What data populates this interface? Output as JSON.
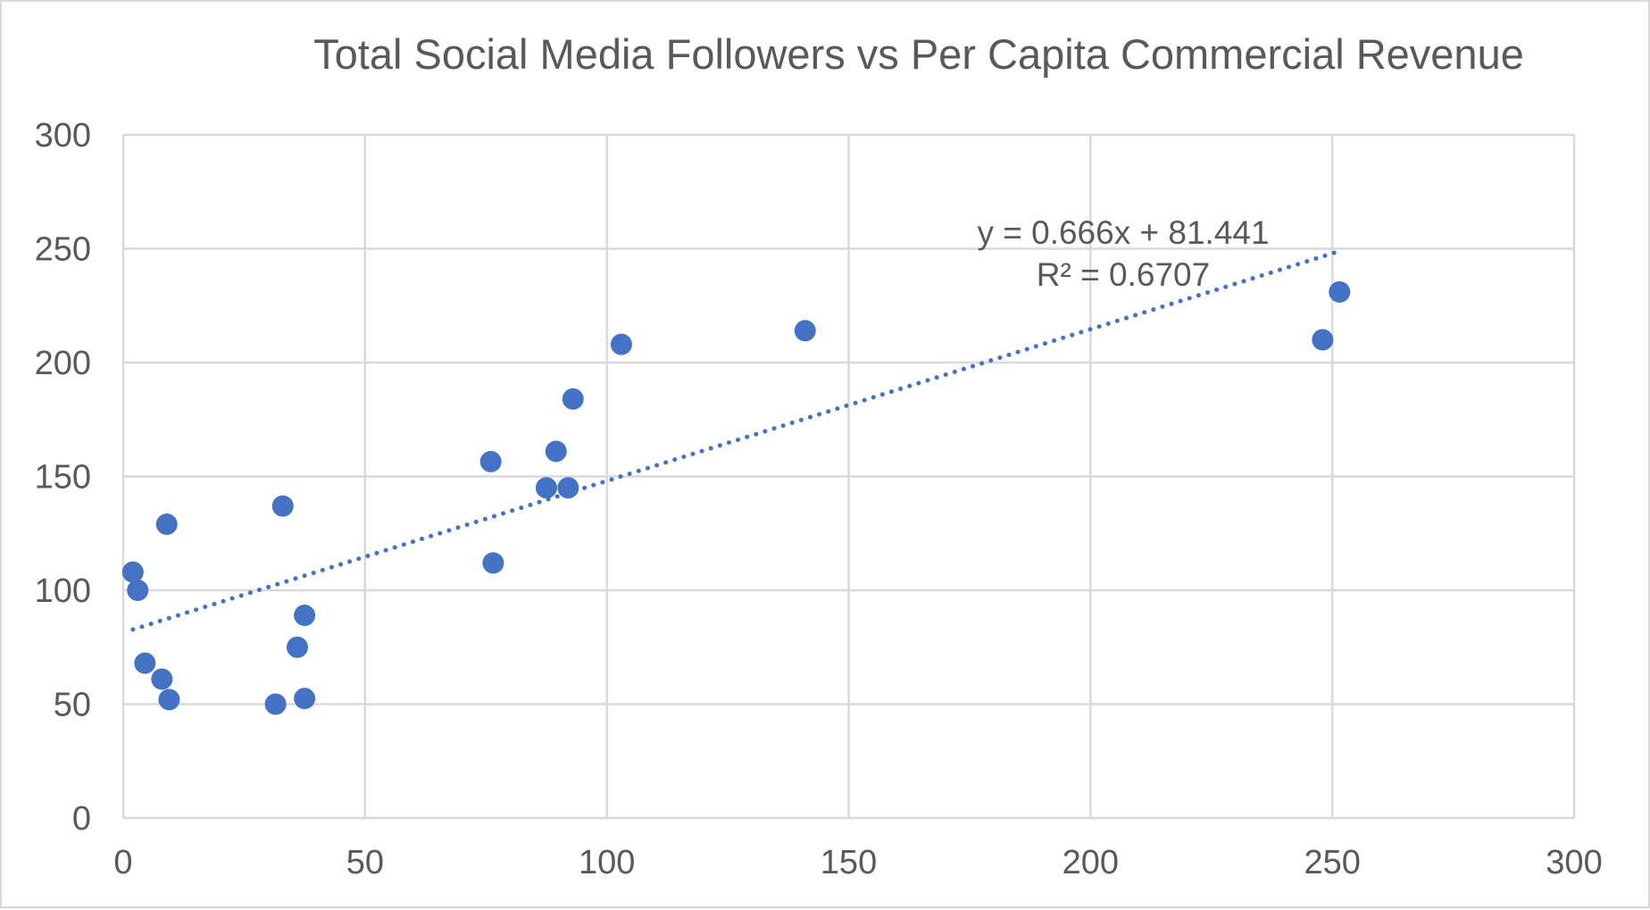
{
  "chart_data": {
    "type": "scatter",
    "title": "Total Social Media Followers vs Per Capita Commercial Revenue",
    "xlabel": "",
    "ylabel": "",
    "xlim": [
      0,
      300
    ],
    "ylim": [
      0,
      300
    ],
    "x_ticks": [
      0,
      50,
      100,
      150,
      200,
      250,
      300
    ],
    "y_ticks": [
      0,
      50,
      100,
      150,
      200,
      250,
      300
    ],
    "grid": true,
    "legend": "none",
    "series": [
      {
        "color": "#4472c4",
        "points": [
          {
            "x": 2,
            "y": 108
          },
          {
            "x": 3,
            "y": 100
          },
          {
            "x": 4.5,
            "y": 68
          },
          {
            "x": 8,
            "y": 61
          },
          {
            "x": 9,
            "y": 129
          },
          {
            "x": 9.5,
            "y": 52
          },
          {
            "x": 31.5,
            "y": 50
          },
          {
            "x": 33,
            "y": 137
          },
          {
            "x": 36,
            "y": 75
          },
          {
            "x": 37.5,
            "y": 89
          },
          {
            "x": 37.5,
            "y": 52.5
          },
          {
            "x": 76,
            "y": 156.5
          },
          {
            "x": 76.5,
            "y": 112
          },
          {
            "x": 87.5,
            "y": 145
          },
          {
            "x": 89.5,
            "y": 161
          },
          {
            "x": 92,
            "y": 145
          },
          {
            "x": 93,
            "y": 184
          },
          {
            "x": 103,
            "y": 208
          },
          {
            "x": 141,
            "y": 214
          },
          {
            "x": 248,
            "y": 210
          },
          {
            "x": 251.5,
            "y": 231
          }
        ]
      }
    ],
    "trendline": {
      "type": "linear",
      "style": "dotted",
      "slope": 0.666,
      "intercept": 81.441,
      "x_start": 2,
      "x_end": 251.5,
      "equation_label": "y = 0.666x + 81.441",
      "r2_label": "R² = 0.6707"
    }
  }
}
